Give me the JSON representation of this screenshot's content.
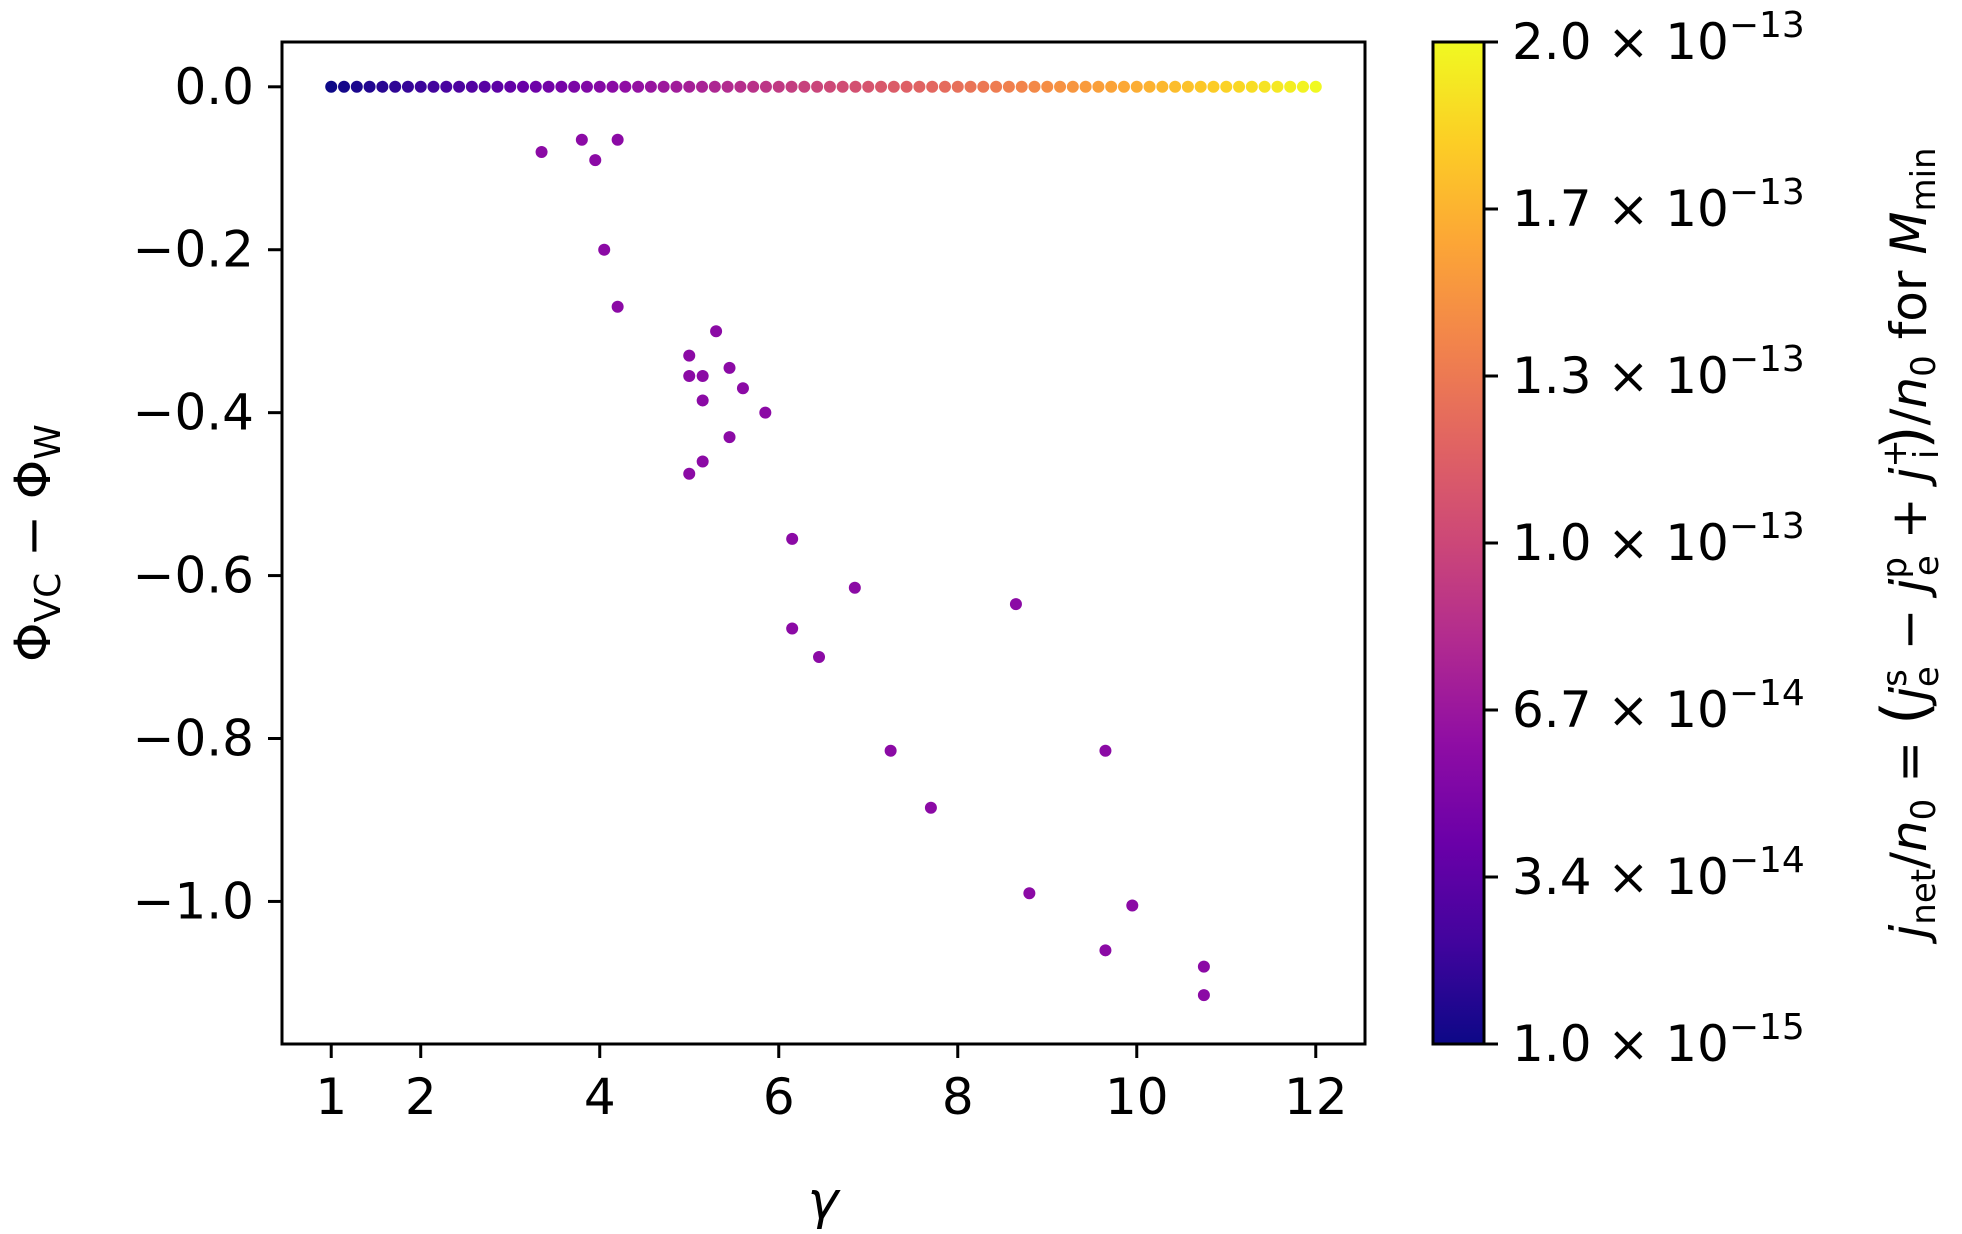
{
  "chart_data": {
    "type": "scatter",
    "xlabel": "γ",
    "ylabel_parts": {
      "main1": "Φ",
      "sub1": "VC",
      "minus": " − ",
      "main2": "Φ",
      "sub2": "W"
    },
    "xlim": [
      0.45,
      12.55
    ],
    "ylim": [
      -1.175,
      0.055
    ],
    "xticks": [
      1,
      2,
      4,
      6,
      8,
      10,
      12
    ],
    "xtick_labels": [
      "1",
      "2",
      "4",
      "6",
      "8",
      "10",
      "12"
    ],
    "yticks": [
      0.0,
      -0.2,
      -0.4,
      -0.6,
      -0.8,
      -1.0
    ],
    "ytick_labels": [
      "0.0",
      "−0.2",
      "−0.4",
      "−0.6",
      "−0.8",
      "−1.0"
    ],
    "grid": false,
    "colorscale": "plasma",
    "top_row": {
      "x_start": 1.0,
      "x_end": 12.0,
      "count": 78,
      "y": 0.0
    },
    "scatter_color": "#8b0aa5",
    "scatter_points": [
      [
        3.35,
        -0.08
      ],
      [
        3.8,
        -0.065
      ],
      [
        3.95,
        -0.09
      ],
      [
        4.2,
        -0.065
      ],
      [
        4.05,
        -0.2
      ],
      [
        4.2,
        -0.27
      ],
      [
        5.3,
        -0.3
      ],
      [
        5.0,
        -0.33
      ],
      [
        5.45,
        -0.345
      ],
      [
        5.0,
        -0.355
      ],
      [
        5.15,
        -0.355
      ],
      [
        5.6,
        -0.37
      ],
      [
        5.15,
        -0.385
      ],
      [
        5.85,
        -0.4
      ],
      [
        5.45,
        -0.43
      ],
      [
        5.15,
        -0.46
      ],
      [
        5.0,
        -0.475
      ],
      [
        6.15,
        -0.555
      ],
      [
        6.85,
        -0.615
      ],
      [
        8.65,
        -0.635
      ],
      [
        6.15,
        -0.665
      ],
      [
        6.45,
        -0.7
      ],
      [
        7.25,
        -0.815
      ],
      [
        9.65,
        -0.815
      ],
      [
        7.7,
        -0.885
      ],
      [
        8.8,
        -0.99
      ],
      [
        9.95,
        -1.005
      ],
      [
        9.65,
        -1.06
      ],
      [
        10.75,
        -1.08
      ],
      [
        10.75,
        -1.115
      ]
    ],
    "colorbar": {
      "tick_labels": [
        {
          "mant": "1.0",
          "exp": "−15"
        },
        {
          "mant": "3.4",
          "exp": "−14"
        },
        {
          "mant": "6.7",
          "exp": "−14"
        },
        {
          "mant": "1.0",
          "exp": "−13"
        },
        {
          "mant": "1.3",
          "exp": "−13"
        },
        {
          "mant": "1.7",
          "exp": "−13"
        },
        {
          "mant": "2.0",
          "exp": "−13"
        }
      ],
      "times_sign": " × 10",
      "label": "j_net/n_0 = (j_e^s − j_e^p + j_i^+)/n_0 for M_min"
    }
  }
}
